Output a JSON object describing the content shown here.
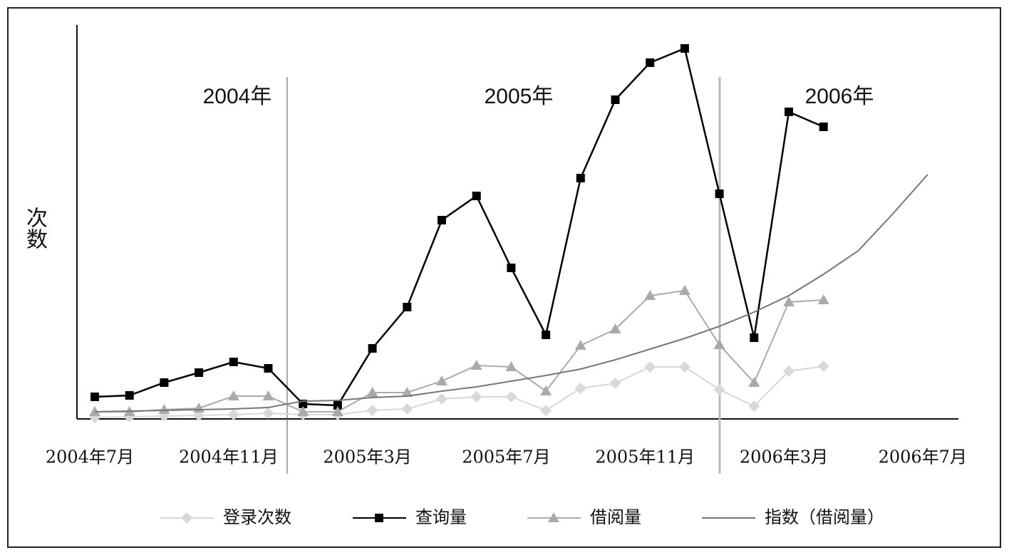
{
  "chart_data": {
    "type": "line",
    "annotations": [
      "2004年",
      "2005年",
      "2006年"
    ],
    "ylabel": "次数",
    "categories": [
      "2004年7月",
      null,
      null,
      null,
      "2004年11月",
      null,
      null,
      null,
      "2005年3月",
      null,
      null,
      null,
      "2005年7月",
      null,
      null,
      null,
      "2005年11月",
      null,
      null,
      null,
      "2006年3月",
      null,
      null,
      null,
      "2006年7月"
    ],
    "ylim": [
      0,
      560
    ],
    "series": [
      {
        "name": "登录次数",
        "color": "#d8d8d8",
        "marker": "diamond",
        "values": [
          2,
          3,
          4,
          5,
          6,
          8,
          6,
          6,
          12,
          14,
          28,
          31,
          31,
          12,
          43,
          50,
          73,
          73,
          41,
          18,
          67,
          74,
          null,
          null,
          null
        ]
      },
      {
        "name": "查询量",
        "color": "#000000",
        "marker": "square",
        "values": [
          31,
          33,
          51,
          65,
          80,
          71,
          21,
          19,
          99,
          157,
          279,
          313,
          212,
          118,
          338,
          448,
          500,
          520,
          316,
          114,
          431,
          410,
          null,
          null,
          null
        ]
      },
      {
        "name": "借阅量",
        "color": "#aaaaaa",
        "marker": "triangle",
        "values": [
          10,
          10,
          13,
          15,
          32,
          32,
          10,
          10,
          37,
          37,
          53,
          75,
          73,
          39,
          103,
          126,
          173,
          180,
          104,
          51,
          164,
          167,
          null,
          null,
          null
        ]
      },
      {
        "name": "指数（借阅量）",
        "color": "#777777",
        "marker": "none",
        "values": [
          10,
          11,
          12,
          13,
          14,
          16,
          25,
          26,
          30,
          32,
          39,
          45,
          53,
          61,
          70,
          83,
          98,
          113,
          130,
          150,
          173,
          203,
          236,
          288,
          343
        ]
      }
    ]
  }
}
